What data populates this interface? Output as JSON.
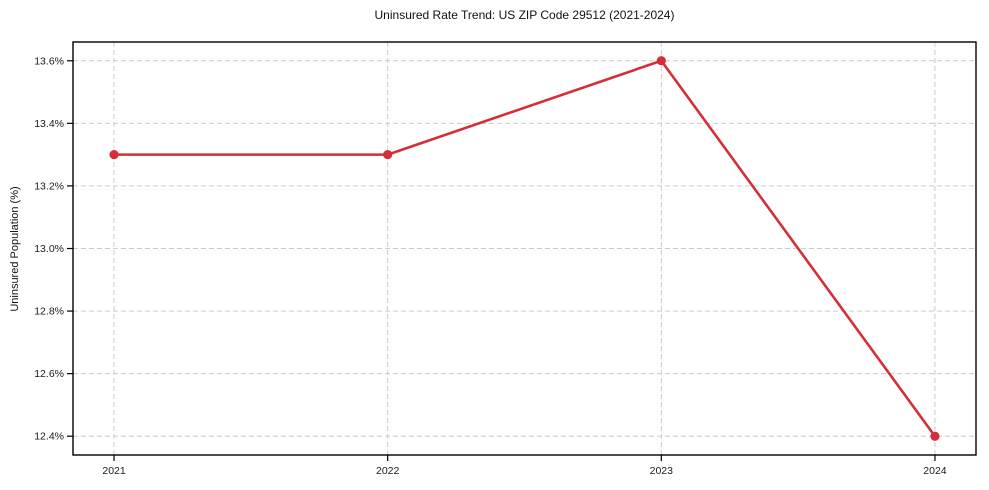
{
  "chart_data": {
    "type": "line",
    "title": "Uninsured Rate Trend: US ZIP Code 29512 (2021-2024)",
    "xlabel": "",
    "ylabel": "Uninsured Population (%)",
    "x": [
      2021,
      2022,
      2023,
      2024
    ],
    "x_tick_labels": [
      "2021",
      "2022",
      "2023",
      "2024"
    ],
    "series": [
      {
        "name": "Uninsured rate",
        "values": [
          13.3,
          13.3,
          13.6,
          12.4
        ]
      }
    ],
    "y_ticks": [
      {
        "value": 13.6,
        "label": "13.6%"
      },
      {
        "value": 13.4,
        "label": "13.4%"
      },
      {
        "value": 13.2,
        "label": "13.2%"
      },
      {
        "value": 13.0,
        "label": "13.0%"
      },
      {
        "value": 12.8,
        "label": "12.8%"
      },
      {
        "value": 12.6,
        "label": "12.6%"
      },
      {
        "value": 12.4,
        "label": "12.4%"
      }
    ],
    "xlim": [
      2020.85,
      2024.15
    ],
    "ylim": [
      12.34,
      13.66
    ],
    "grid": true,
    "grid_style": "dashed",
    "legend": "none",
    "marker": "circle",
    "marker_radius": 4.6,
    "colors": {
      "line": "#d62e39",
      "marker": "#d62e39",
      "grid": "#cccccc",
      "spine": "#000000",
      "text": "#1a1a1a",
      "background": "#ffffff"
    }
  }
}
